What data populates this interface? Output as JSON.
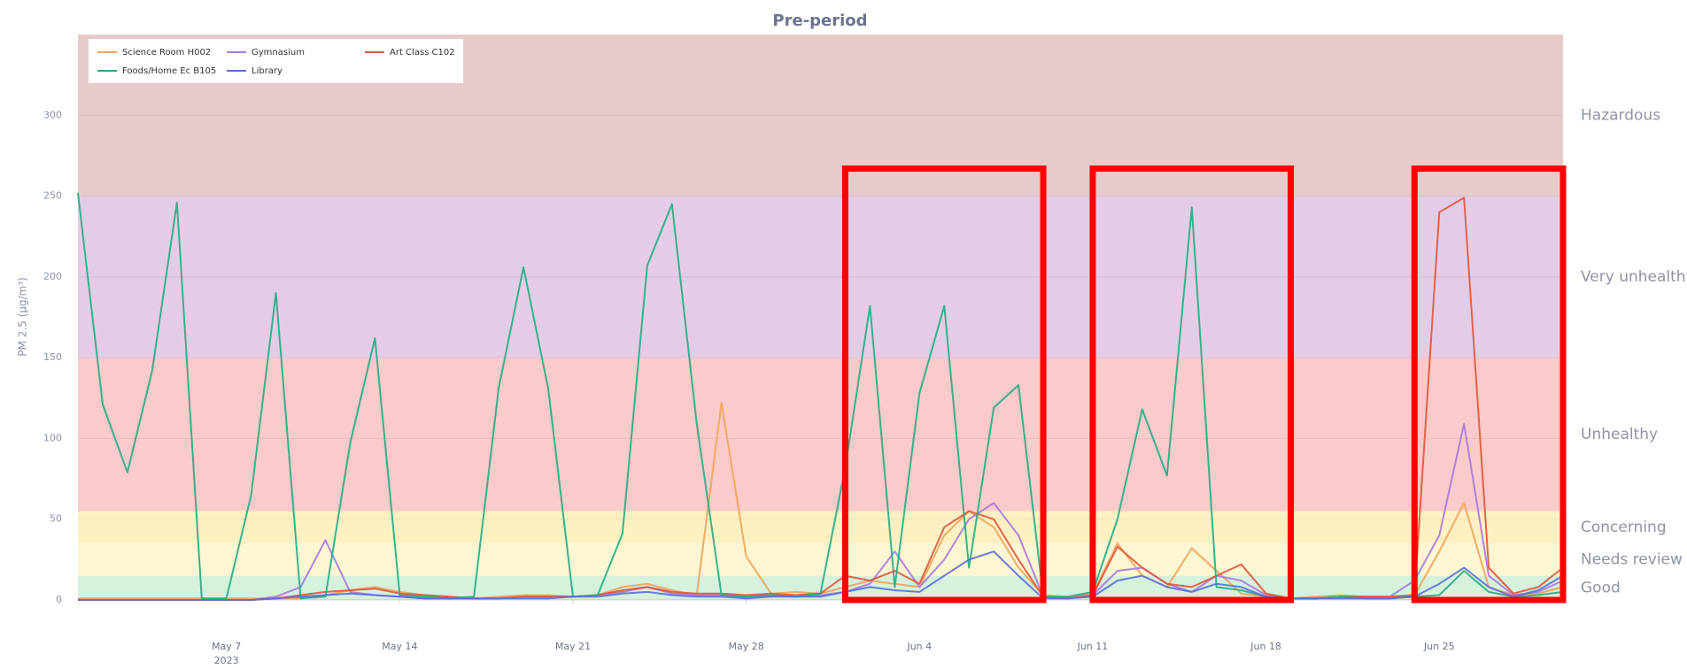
{
  "chart_data": {
    "type": "line",
    "title": "Pre-period",
    "y_label": "PM 2.5 (µg/m³)",
    "x_year_label": "2023",
    "x": [
      "2023-05-01",
      "2023-05-02",
      "2023-05-03",
      "2023-05-04",
      "2023-05-05",
      "2023-05-06",
      "2023-05-07",
      "2023-05-08",
      "2023-05-09",
      "2023-05-10",
      "2023-05-11",
      "2023-05-12",
      "2023-05-13",
      "2023-05-14",
      "2023-05-15",
      "2023-05-16",
      "2023-05-17",
      "2023-05-18",
      "2023-05-19",
      "2023-05-20",
      "2023-05-21",
      "2023-05-22",
      "2023-05-23",
      "2023-05-24",
      "2023-05-25",
      "2023-05-26",
      "2023-05-27",
      "2023-05-28",
      "2023-05-29",
      "2023-05-30",
      "2023-05-31",
      "2023-06-01",
      "2023-06-02",
      "2023-06-03",
      "2023-06-04",
      "2023-06-05",
      "2023-06-06",
      "2023-06-07",
      "2023-06-08",
      "2023-06-09",
      "2023-06-10",
      "2023-06-11",
      "2023-06-12",
      "2023-06-13",
      "2023-06-14",
      "2023-06-15",
      "2023-06-16",
      "2023-06-17",
      "2023-06-18",
      "2023-06-19",
      "2023-06-20",
      "2023-06-21",
      "2023-06-22",
      "2023-06-23",
      "2023-06-24",
      "2023-06-25",
      "2023-06-26",
      "2023-06-27",
      "2023-06-28",
      "2023-06-29",
      "2023-06-30"
    ],
    "series": [
      {
        "name": "Science Room H002",
        "color": "#f0a35a",
        "values": [
          1,
          1,
          1,
          1,
          1,
          1,
          1,
          1,
          1,
          1,
          3,
          6,
          8,
          5,
          3,
          2,
          1,
          2,
          3,
          3,
          2,
          3,
          8,
          10,
          6,
          3,
          122,
          27,
          4,
          5,
          4,
          8,
          12,
          10,
          8,
          40,
          55,
          45,
          20,
          3,
          2,
          4,
          35,
          15,
          8,
          32,
          18,
          4,
          2,
          1,
          2,
          3,
          2,
          2,
          3,
          30,
          60,
          8,
          3,
          4,
          8
        ]
      },
      {
        "name": "Gymnasium",
        "color": "#a878e0",
        "values": [
          0,
          0,
          0,
          0,
          0,
          0,
          0,
          0,
          2,
          8,
          37,
          5,
          3,
          2,
          1,
          1,
          1,
          1,
          2,
          2,
          2,
          3,
          5,
          8,
          4,
          3,
          3,
          2,
          3,
          2,
          3,
          5,
          10,
          30,
          8,
          25,
          50,
          60,
          40,
          2,
          1,
          3,
          18,
          20,
          10,
          5,
          15,
          12,
          3,
          1,
          1,
          2,
          2,
          2,
          12,
          40,
          109,
          15,
          3,
          5,
          12
        ]
      },
      {
        "name": "Art Class C102",
        "color": "#e0553a",
        "values": [
          0,
          0,
          0,
          0,
          0,
          0,
          0,
          0,
          1,
          3,
          5,
          6,
          7,
          4,
          3,
          2,
          1,
          1,
          2,
          2,
          2,
          3,
          6,
          8,
          5,
          4,
          4,
          3,
          4,
          3,
          4,
          15,
          12,
          18,
          10,
          45,
          55,
          50,
          25,
          2,
          1,
          3,
          33,
          20,
          10,
          8,
          15,
          22,
          4,
          1,
          1,
          2,
          2,
          2,
          3,
          240,
          249,
          20,
          4,
          8,
          20
        ]
      },
      {
        "name": "Foods/Home Ec B105",
        "color": "#1fae84",
        "values": [
          252,
          121,
          79,
          142,
          246,
          1,
          1,
          65,
          190,
          1,
          2,
          97,
          162,
          3,
          2,
          1,
          2,
          131,
          206,
          131,
          2,
          3,
          41,
          207,
          245,
          109,
          3,
          2,
          3,
          2,
          4,
          82,
          182,
          8,
          128,
          182,
          20,
          119,
          133,
          2,
          2,
          5,
          50,
          118,
          77,
          243,
          8,
          6,
          2,
          1,
          1,
          2,
          1,
          1,
          2,
          3,
          18,
          5,
          2,
          3,
          5
        ]
      },
      {
        "name": "Library",
        "color": "#5a6ee0",
        "values": [
          0,
          0,
          0,
          0,
          0,
          0,
          0,
          0,
          1,
          2,
          3,
          4,
          3,
          2,
          1,
          1,
          1,
          1,
          1,
          1,
          2,
          2,
          4,
          5,
          3,
          2,
          2,
          1,
          2,
          2,
          2,
          5,
          8,
          6,
          5,
          15,
          25,
          30,
          15,
          1,
          1,
          2,
          12,
          15,
          8,
          5,
          10,
          8,
          2,
          1,
          1,
          1,
          1,
          1,
          2,
          10,
          20,
          8,
          2,
          6,
          15
        ]
      }
    ],
    "xlim": [
      "2023-05-01",
      "2023-06-30"
    ],
    "xticks": [
      {
        "value": "2023-05-07",
        "label": "May 7"
      },
      {
        "value": "2023-05-14",
        "label": "May 14"
      },
      {
        "value": "2023-05-21",
        "label": "May 21"
      },
      {
        "value": "2023-05-28",
        "label": "May 28"
      },
      {
        "value": "2023-06-04",
        "label": "Jun 4"
      },
      {
        "value": "2023-06-11",
        "label": "Jun 11"
      },
      {
        "value": "2023-06-18",
        "label": "Jun 18"
      },
      {
        "value": "2023-06-25",
        "label": "Jun 25"
      }
    ],
    "ylim": [
      0,
      350
    ],
    "yticks": [
      0,
      50,
      100,
      150,
      200,
      250,
      300
    ],
    "grid": true,
    "legend": "top-left",
    "bands": [
      {
        "label": "Good",
        "range": [
          0,
          15
        ],
        "color": "#d6f1dc"
      },
      {
        "label": "Needs review",
        "range": [
          15,
          35
        ],
        "color": "#fdf6d2"
      },
      {
        "label": "Concerning",
        "range": [
          35,
          55
        ],
        "color": "#fdf1c4"
      },
      {
        "label": "Unhealthy",
        "range": [
          55,
          150
        ],
        "color": "#fbcaca"
      },
      {
        "label": "Very unhealthy",
        "range": [
          150,
          250
        ],
        "color": "#e5cce6"
      },
      {
        "label": "Hazardous",
        "range": [
          250,
          350
        ],
        "color": "#e7cbcb"
      }
    ],
    "highlights": [
      {
        "x": [
          "2023-06-01",
          "2023-06-09"
        ],
        "y": [
          0,
          267
        ],
        "color": "#ff0000"
      },
      {
        "x": [
          "2023-06-11",
          "2023-06-19"
        ],
        "y": [
          0,
          267
        ],
        "color": "#ff0000"
      },
      {
        "x": [
          "2023-06-24",
          "2023-06-30"
        ],
        "y": [
          0,
          267
        ],
        "color": "#ff0000"
      }
    ]
  }
}
